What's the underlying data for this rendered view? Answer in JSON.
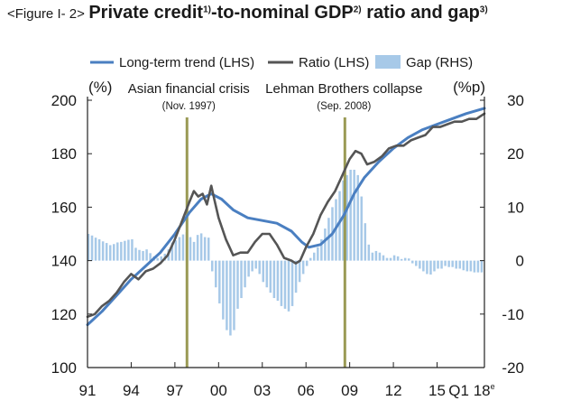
{
  "title": {
    "lead": "<Figure I- 2>",
    "part1": "Private credit",
    "sup1": "1)",
    "part2": "-to-nominal GDP",
    "sup2": "2)",
    "part3": " ratio and gap",
    "sup3": "3)"
  },
  "chart_data": {
    "type": "line+bar",
    "x_tick_labels": [
      "91",
      "94",
      "97",
      "00",
      "03",
      "06",
      "09",
      "12",
      "15",
      "Q1 18"
    ],
    "x_tick_years": [
      1991,
      1994,
      1997,
      2000,
      2003,
      2006,
      2009,
      2012,
      2015,
      2018
    ],
    "x_tick_last_suffix": "e",
    "xlim": [
      1991,
      2018.25
    ],
    "left_axis": {
      "unit": "(%)",
      "ylim": [
        100,
        200
      ],
      "ticks": [
        200,
        180,
        160,
        140,
        120,
        100
      ]
    },
    "right_axis": {
      "unit": "(%p)",
      "ylim": [
        -20,
        30
      ],
      "ticks": [
        30,
        20,
        10,
        0,
        -10,
        -20
      ]
    },
    "legend": [
      {
        "label": "Long-term trend (LHS)",
        "kind": "line",
        "color": "#4a7fc1"
      },
      {
        "label": "Ratio (LHS)",
        "kind": "line",
        "color": "#555555"
      },
      {
        "label": "Gap (RHS)",
        "kind": "bar",
        "color": "#a7c9e8"
      }
    ],
    "annotations": [
      {
        "label": "Asian financial crisis",
        "sub": "(Nov. 1997)",
        "x": 1997.83
      },
      {
        "label": "Lehman Brothers collapse",
        "sub": "(Sep. 2008)",
        "x": 2008.67
      }
    ],
    "series": [
      {
        "name": "Long-term trend (LHS)",
        "axis": "left",
        "color": "#4a7fc1",
        "points": [
          [
            1991,
            116
          ],
          [
            1992,
            121
          ],
          [
            1993,
            127
          ],
          [
            1994,
            133
          ],
          [
            1995,
            138
          ],
          [
            1996,
            143
          ],
          [
            1997,
            150
          ],
          [
            1998,
            158
          ],
          [
            1998.8,
            163
          ],
          [
            1999.5,
            165
          ],
          [
            2000.2,
            163
          ],
          [
            2001,
            159
          ],
          [
            2002,
            156
          ],
          [
            2003,
            155
          ],
          [
            2004,
            154
          ],
          [
            2005,
            151
          ],
          [
            2005.7,
            147
          ],
          [
            2006.2,
            145
          ],
          [
            2007,
            146
          ],
          [
            2007.8,
            150
          ],
          [
            2008.6,
            157
          ],
          [
            2009.3,
            165
          ],
          [
            2010,
            171
          ],
          [
            2011,
            177
          ],
          [
            2012,
            182
          ],
          [
            2013,
            186
          ],
          [
            2014,
            189
          ],
          [
            2015,
            191
          ],
          [
            2016,
            193
          ],
          [
            2017,
            195
          ],
          [
            2018.25,
            197
          ]
        ]
      },
      {
        "name": "Ratio (LHS)",
        "axis": "left",
        "color": "#555555",
        "points": [
          [
            1991,
            119
          ],
          [
            1991.5,
            120
          ],
          [
            1992,
            123
          ],
          [
            1992.5,
            125
          ],
          [
            1993,
            128
          ],
          [
            1993.5,
            132
          ],
          [
            1994,
            135
          ],
          [
            1994.5,
            133
          ],
          [
            1995,
            136
          ],
          [
            1995.5,
            137
          ],
          [
            1996,
            139
          ],
          [
            1996.5,
            142
          ],
          [
            1997,
            148
          ],
          [
            1997.5,
            155
          ],
          [
            1998,
            162
          ],
          [
            1998.3,
            166
          ],
          [
            1998.6,
            164
          ],
          [
            1998.9,
            165
          ],
          [
            1999.2,
            161
          ],
          [
            1999.5,
            168
          ],
          [
            1999.7,
            163
          ],
          [
            2000,
            156
          ],
          [
            2000.5,
            148
          ],
          [
            2001,
            142
          ],
          [
            2001.5,
            143
          ],
          [
            2002,
            143
          ],
          [
            2002.5,
            147
          ],
          [
            2003,
            150
          ],
          [
            2003.5,
            150
          ],
          [
            2004,
            146
          ],
          [
            2004.5,
            141
          ],
          [
            2005,
            140
          ],
          [
            2005.3,
            139
          ],
          [
            2005.6,
            140
          ],
          [
            2006,
            145
          ],
          [
            2006.5,
            150
          ],
          [
            2007,
            157
          ],
          [
            2007.5,
            162
          ],
          [
            2008,
            166
          ],
          [
            2008.5,
            172
          ],
          [
            2009,
            178
          ],
          [
            2009.4,
            181
          ],
          [
            2009.8,
            180
          ],
          [
            2010.2,
            176
          ],
          [
            2010.7,
            177
          ],
          [
            2011.2,
            179
          ],
          [
            2011.7,
            182
          ],
          [
            2012.2,
            183
          ],
          [
            2012.7,
            183
          ],
          [
            2013.2,
            185
          ],
          [
            2013.7,
            186
          ],
          [
            2014.2,
            187
          ],
          [
            2014.7,
            190
          ],
          [
            2015.2,
            190
          ],
          [
            2015.7,
            191
          ],
          [
            2016.2,
            192
          ],
          [
            2016.7,
            192
          ],
          [
            2017.2,
            193
          ],
          [
            2017.7,
            193
          ],
          [
            2018.25,
            195
          ]
        ]
      },
      {
        "name": "Gap (RHS)",
        "axis": "right",
        "color": "#a7c9e8",
        "bars": [
          [
            1991,
            5
          ],
          [
            1991.25,
            4.7
          ],
          [
            1991.5,
            4.3
          ],
          [
            1991.75,
            4
          ],
          [
            1992,
            3.6
          ],
          [
            1992.25,
            3.3
          ],
          [
            1992.5,
            2.9
          ],
          [
            1992.75,
            3.1
          ],
          [
            1993,
            3.4
          ],
          [
            1993.25,
            3.5
          ],
          [
            1993.5,
            3.7
          ],
          [
            1993.75,
            3.9
          ],
          [
            1994,
            4
          ],
          [
            1994.25,
            2.4
          ],
          [
            1994.5,
            2
          ],
          [
            1994.75,
            1.8
          ],
          [
            1995,
            2.1
          ],
          [
            1995.25,
            1.4
          ],
          [
            1995.5,
            0.8
          ],
          [
            1995.75,
            0.5
          ],
          [
            1996,
            0.8
          ],
          [
            1996.25,
            1.3
          ],
          [
            1996.5,
            2.1
          ],
          [
            1996.75,
            3.4
          ],
          [
            1997,
            3.8
          ],
          [
            1997.25,
            4.4
          ],
          [
            1997.5,
            4.9
          ],
          [
            1997.75,
            5.3
          ],
          [
            1998,
            4.4
          ],
          [
            1998.25,
            3.5
          ],
          [
            1998.5,
            4.8
          ],
          [
            1998.75,
            5.1
          ],
          [
            1999,
            4.4
          ],
          [
            1999.25,
            4.3
          ],
          [
            1999.5,
            -2
          ],
          [
            1999.75,
            -5
          ],
          [
            2000,
            -8
          ],
          [
            2000.25,
            -11
          ],
          [
            2000.5,
            -13
          ],
          [
            2000.75,
            -14
          ],
          [
            2001,
            -13
          ],
          [
            2001.25,
            -9
          ],
          [
            2001.5,
            -7
          ],
          [
            2001.75,
            -5
          ],
          [
            2002,
            -3
          ],
          [
            2002.25,
            -2
          ],
          [
            2002.5,
            -1.5
          ],
          [
            2002.75,
            -2.5
          ],
          [
            2003,
            -4
          ],
          [
            2003.25,
            -5
          ],
          [
            2003.5,
            -6
          ],
          [
            2003.75,
            -7
          ],
          [
            2004,
            -7.5
          ],
          [
            2004.25,
            -8.5
          ],
          [
            2004.5,
            -9
          ],
          [
            2004.75,
            -9.5
          ],
          [
            2005,
            -8.5
          ],
          [
            2005.25,
            -6
          ],
          [
            2005.5,
            -4
          ],
          [
            2005.75,
            -2.5
          ],
          [
            2006,
            -1
          ],
          [
            2006.25,
            0.5
          ],
          [
            2006.5,
            1.5
          ],
          [
            2006.75,
            2.5
          ],
          [
            2007,
            4
          ],
          [
            2007.25,
            6
          ],
          [
            2007.5,
            8
          ],
          [
            2007.75,
            10
          ],
          [
            2008,
            11.5
          ],
          [
            2008.25,
            13
          ],
          [
            2008.5,
            15
          ],
          [
            2008.75,
            16
          ],
          [
            2009,
            17
          ],
          [
            2009.25,
            17
          ],
          [
            2009.5,
            16
          ],
          [
            2009.75,
            12
          ],
          [
            2010,
            7
          ],
          [
            2010.25,
            3
          ],
          [
            2010.5,
            1.5
          ],
          [
            2010.75,
            1.8
          ],
          [
            2011,
            1.5
          ],
          [
            2011.25,
            1
          ],
          [
            2011.5,
            0.5
          ],
          [
            2011.75,
            0.5
          ],
          [
            2012,
            1
          ],
          [
            2012.25,
            0.8
          ],
          [
            2012.5,
            0.3
          ],
          [
            2012.75,
            0.5
          ],
          [
            2013,
            0.4
          ],
          [
            2013.25,
            -0.5
          ],
          [
            2013.5,
            -1
          ],
          [
            2013.75,
            -1.5
          ],
          [
            2014,
            -2
          ],
          [
            2014.25,
            -2.5
          ],
          [
            2014.5,
            -2.6
          ],
          [
            2014.75,
            -2
          ],
          [
            2015,
            -1.5
          ],
          [
            2015.25,
            -1.5
          ],
          [
            2015.5,
            -1
          ],
          [
            2015.75,
            -1.2
          ],
          [
            2016,
            -1.2
          ],
          [
            2016.25,
            -1.5
          ],
          [
            2016.5,
            -1.5
          ],
          [
            2016.75,
            -1.8
          ],
          [
            2017,
            -2
          ],
          [
            2017.25,
            -2
          ],
          [
            2017.5,
            -2.2
          ],
          [
            2017.75,
            -2.2
          ],
          [
            2018,
            -2.2
          ]
        ]
      }
    ]
  }
}
